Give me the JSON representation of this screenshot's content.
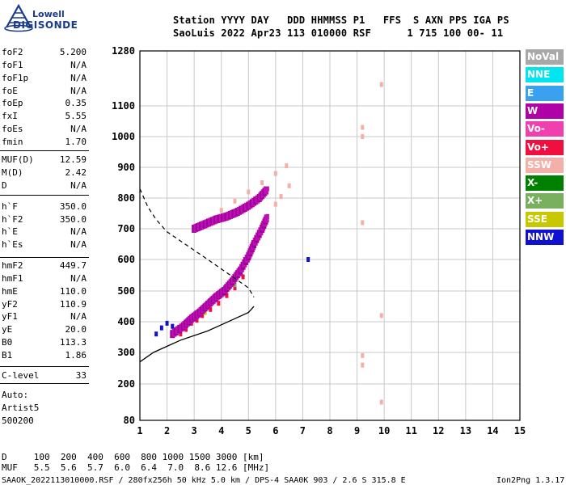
{
  "logo": {
    "line1": "Lowell",
    "line2": "DIGISONDE"
  },
  "header": {
    "line1": "Station YYYY DAY   DDD HHMMSS P1   FFS  S AXN PPS IGA PS",
    "line2": "SaoLuis 2022 Apr23 113 010000 RSF      1 715 100 00- 11"
  },
  "scaled": [
    {
      "name": "foF2",
      "value": "5.200"
    },
    {
      "name": "foF1",
      "value": "N/A"
    },
    {
      "name": "foF1p",
      "value": "N/A"
    },
    {
      "name": "foE",
      "value": "N/A"
    },
    {
      "name": "foEp",
      "value": "0.35"
    },
    {
      "name": "fxI",
      "value": "5.55"
    },
    {
      "name": "foEs",
      "value": "N/A"
    },
    {
      "name": "fmin",
      "value": "1.70"
    },
    {
      "name": "MUF(D)",
      "value": "12.59"
    },
    {
      "name": "M(D)",
      "value": "2.42"
    },
    {
      "name": "D",
      "value": "N/A"
    },
    {
      "name": "h`F",
      "value": "350.0"
    },
    {
      "name": "h`F2",
      "value": "350.0"
    },
    {
      "name": "h`E",
      "value": "N/A"
    },
    {
      "name": "h`Es",
      "value": "N/A"
    },
    {
      "name": "hmF2",
      "value": "449.7"
    },
    {
      "name": "hmF1",
      "value": "N/A"
    },
    {
      "name": "hmE",
      "value": "110.0"
    },
    {
      "name": "yF2",
      "value": "110.9"
    },
    {
      "name": "yF1",
      "value": "N/A"
    },
    {
      "name": "yE",
      "value": "20.0"
    },
    {
      "name": "B0",
      "value": "113.3"
    },
    {
      "name": "B1",
      "value": "1.86"
    },
    {
      "name": "C-level",
      "value": "33"
    }
  ],
  "auto": {
    "line1": "Auto:",
    "line2": "Artist5",
    "line3": "500200"
  },
  "legend": [
    {
      "label": "NoVal",
      "color": "#a8a8a8"
    },
    {
      "label": "NNE",
      "color": "#00e5ee"
    },
    {
      "label": "E",
      "color": "#3aa0f0"
    },
    {
      "label": "W",
      "color": "#b000a8"
    },
    {
      "label": "Vo-",
      "color": "#f040b0"
    },
    {
      "label": "Vo+",
      "color": "#f01040"
    },
    {
      "label": "SSW",
      "color": "#f4b0a8"
    },
    {
      "label": "X-",
      "color": "#008000"
    },
    {
      "label": "X+",
      "color": "#78b060"
    },
    {
      "label": "SSE",
      "color": "#c8c800"
    },
    {
      "label": "NNW",
      "color": "#1010d0"
    }
  ],
  "bottom": {
    "d_row": "D     100  200  400  600  800 1000 1500 3000 [km]",
    "muf_row": "MUF   5.5  5.6  5.7  6.0  6.4  7.0  8.6 12.6 [MHz]",
    "footer_left": "SAAOK_2022113010000.RSF / 280fx256h 50 kHz 5.0 km / DPS-4 SAA0K 903 / 2.6 S 315.8 E",
    "footer_right": "Ion2Png 1.3.17"
  },
  "chart_data": {
    "type": "scatter",
    "title": "",
    "xlabel": "",
    "ylabel": "",
    "xlim": [
      1,
      15
    ],
    "ylim": [
      80,
      1280
    ],
    "x_ticks": [
      1,
      2,
      3,
      4,
      5,
      6,
      7,
      8,
      9,
      10,
      11,
      12,
      13,
      14,
      15
    ],
    "y_ticks": [
      80,
      200,
      300,
      400,
      500,
      600,
      700,
      800,
      900,
      1000,
      1100,
      1280
    ],
    "grid": true,
    "series": [
      {
        "name": "W",
        "color": "#b000a8",
        "points": [
          [
            2.2,
            360
          ],
          [
            2.6,
            385
          ],
          [
            2.9,
            410
          ],
          [
            3.2,
            430
          ],
          [
            3.5,
            455
          ],
          [
            3.8,
            480
          ],
          [
            4.1,
            500
          ],
          [
            4.4,
            530
          ],
          [
            4.7,
            565
          ],
          [
            5.0,
            610
          ],
          [
            5.2,
            650
          ],
          [
            5.5,
            700
          ],
          [
            5.7,
            740
          ],
          [
            3.0,
            700
          ],
          [
            3.4,
            715
          ],
          [
            3.8,
            730
          ],
          [
            4.2,
            740
          ],
          [
            4.6,
            755
          ],
          [
            5.0,
            775
          ],
          [
            5.4,
            800
          ],
          [
            5.7,
            830
          ]
        ]
      },
      {
        "name": "Vo+",
        "color": "#f01040",
        "points": [
          [
            2.5,
            360
          ],
          [
            2.7,
            375
          ],
          [
            2.9,
            395
          ],
          [
            3.1,
            405
          ],
          [
            3.3,
            420
          ],
          [
            3.6,
            440
          ],
          [
            3.9,
            460
          ],
          [
            4.2,
            485
          ],
          [
            4.5,
            510
          ],
          [
            4.8,
            545
          ]
        ]
      },
      {
        "name": "SSW",
        "color": "#f4b0a8",
        "points": [
          [
            4.0,
            760
          ],
          [
            4.5,
            790
          ],
          [
            5.0,
            820
          ],
          [
            5.5,
            850
          ],
          [
            6.0,
            880
          ],
          [
            6.4,
            905
          ],
          [
            6.0,
            780
          ],
          [
            6.2,
            805
          ],
          [
            6.5,
            840
          ],
          [
            9.2,
            1000
          ],
          [
            9.2,
            1030
          ],
          [
            9.2,
            260
          ],
          [
            9.2,
            290
          ],
          [
            9.2,
            720
          ],
          [
            9.9,
            1170
          ],
          [
            9.9,
            420
          ],
          [
            9.9,
            140
          ]
        ]
      },
      {
        "name": "NNW",
        "color": "#1010d0",
        "points": [
          [
            1.6,
            360
          ],
          [
            1.8,
            380
          ],
          [
            2.0,
            395
          ],
          [
            2.2,
            385
          ],
          [
            7.2,
            600
          ]
        ]
      },
      {
        "name": "X+",
        "color": "#78b060",
        "points": [
          [
            4.0,
            500
          ],
          [
            4.5,
            520
          ],
          [
            5.0,
            600
          ],
          [
            5.2,
            640
          ]
        ]
      },
      {
        "name": "SSE",
        "color": "#c8c800",
        "points": [
          [
            2.6,
            380
          ],
          [
            3.4,
            430
          ],
          [
            4.3,
            510
          ]
        ]
      }
    ],
    "profile": [
      [
        1.0,
        270
      ],
      [
        1.5,
        300
      ],
      [
        2.0,
        320
      ],
      [
        2.5,
        340
      ],
      [
        3.0,
        355
      ],
      [
        3.5,
        370
      ],
      [
        4.0,
        390
      ],
      [
        4.5,
        410
      ],
      [
        5.0,
        430
      ],
      [
        5.2,
        449.7
      ]
    ],
    "ordinary_trace": [
      [
        1.0,
        830
      ],
      [
        1.3,
        770
      ],
      [
        1.6,
        730
      ],
      [
        2.0,
        690
      ],
      [
        2.5,
        660
      ],
      [
        3.0,
        630
      ],
      [
        3.5,
        600
      ],
      [
        4.0,
        570
      ],
      [
        4.5,
        540
      ],
      [
        5.0,
        510
      ],
      [
        5.2,
        480
      ]
    ]
  }
}
